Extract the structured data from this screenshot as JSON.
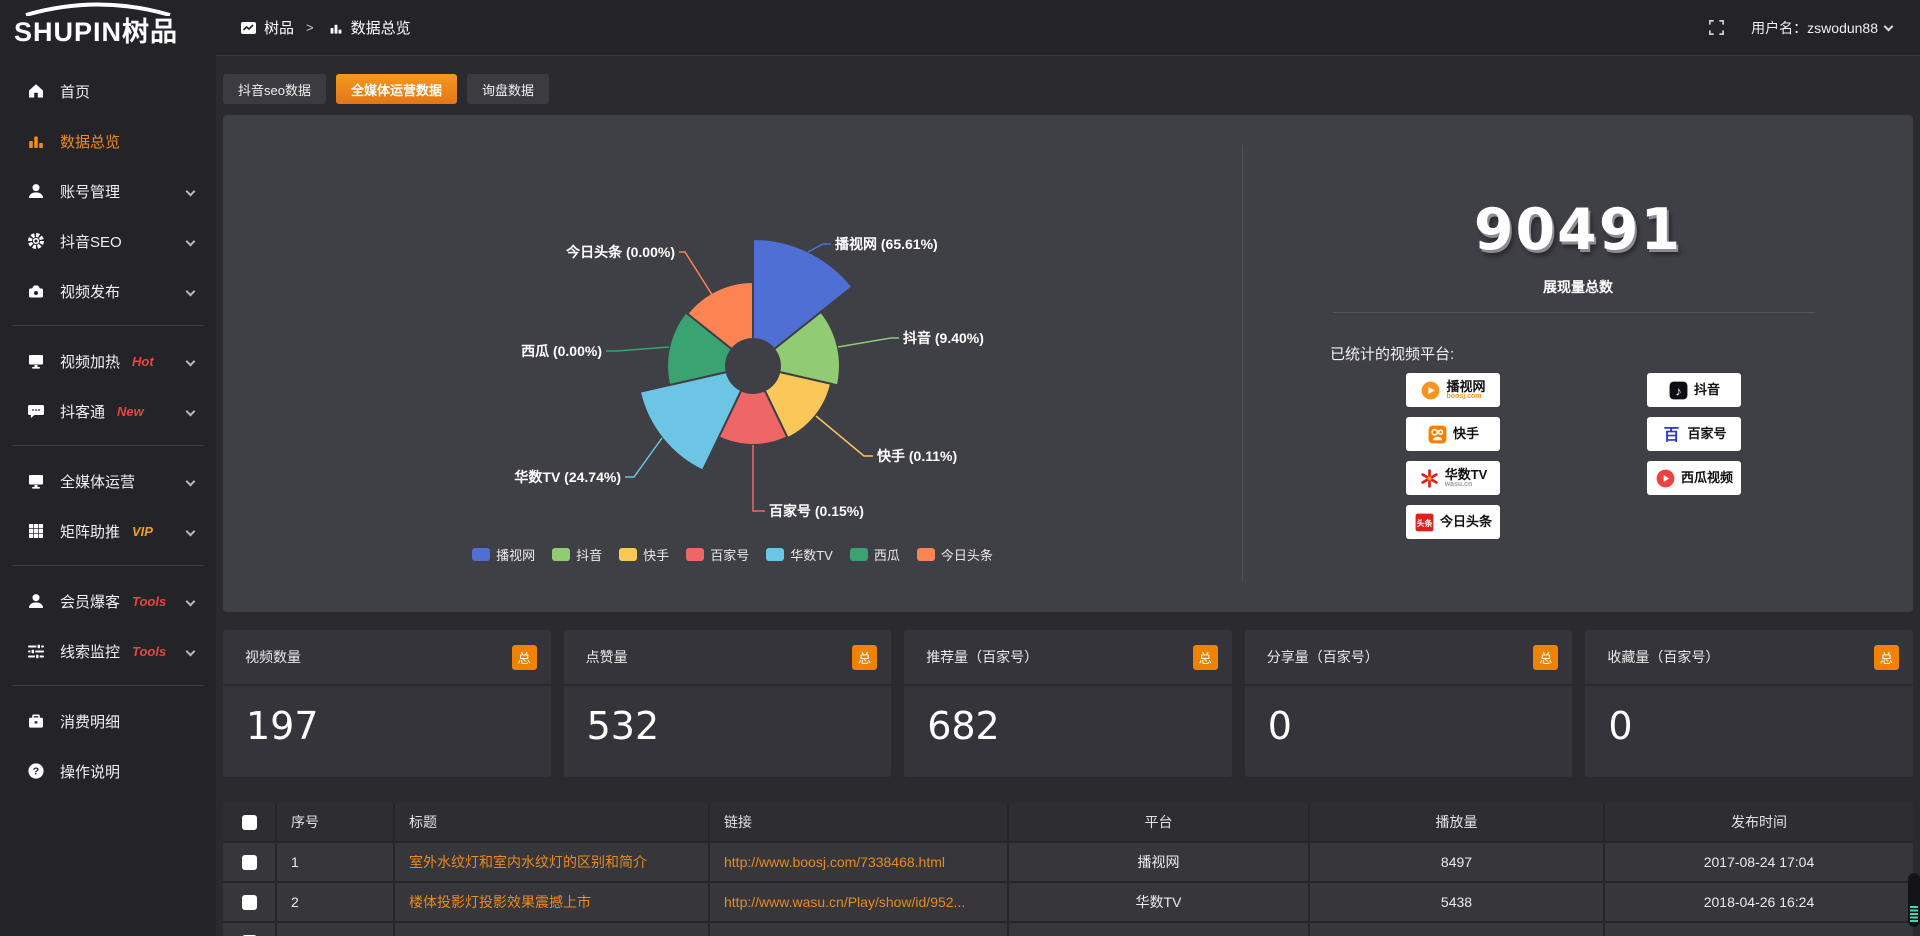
{
  "app": {
    "logo_text": "SHUPIN树品"
  },
  "theme": {
    "accent": "#ee8418",
    "link": "#ea8b1e",
    "hot_badge": "#e84545",
    "vip_badge": "#efa020",
    "badge_total_bg": "#ef8200"
  },
  "header": {
    "breadcrumb_root": "树品",
    "breadcrumb_separator": ">",
    "breadcrumb_current": "数据总览",
    "user_label": "用户名：",
    "username": "zswodun88"
  },
  "sidebar": {
    "items": [
      {
        "label": "首页",
        "icon": "home"
      },
      {
        "label": "数据总览",
        "icon": "bar-chart",
        "active": true
      },
      {
        "label": "账号管理",
        "icon": "user",
        "chevron": true
      },
      {
        "label": "抖音SEO",
        "icon": "gear",
        "chevron": true
      },
      {
        "label": "视频发布",
        "icon": "video-upload",
        "chevron": true,
        "divider_after": true
      },
      {
        "label": "视频加热",
        "icon": "monitor",
        "badge": "Hot",
        "badge_color": "#e84545",
        "chevron": true
      },
      {
        "label": "抖客通",
        "icon": "chat",
        "badge": "New",
        "badge_color": "#e84545",
        "chevron": true,
        "divider_after": true
      },
      {
        "label": "全媒体运营",
        "icon": "monitor",
        "chevron": true
      },
      {
        "label": "矩阵助推",
        "icon": "grid",
        "badge": "VIP",
        "badge_color": "#efa020",
        "chevron": true,
        "divider_after": true
      },
      {
        "label": "会员爆客",
        "icon": "user",
        "badge": "Tools",
        "badge_color": "#e84545",
        "chevron": true
      },
      {
        "label": "线索监控",
        "icon": "sliders",
        "badge": "Tools",
        "badge_color": "#e84545",
        "chevron": true,
        "divider_after": true
      },
      {
        "label": "消费明细",
        "icon": "briefcase"
      },
      {
        "label": "操作说明",
        "icon": "question"
      }
    ]
  },
  "tabs": [
    {
      "label": "抖音seo数据",
      "active": false
    },
    {
      "label": "全媒体运营数据",
      "active": true
    },
    {
      "label": "询盘数据",
      "active": false
    }
  ],
  "chart_data": {
    "type": "pie",
    "subtype": "nightingale-rose",
    "title": "",
    "legend_position": "bottom",
    "equal_angle_slices": true,
    "start_angle_deg": 0,
    "inner_radius_px": 27,
    "series": [
      {
        "name": "播视网",
        "value_pct": 65.61,
        "label": "播视网 (65.61%)",
        "color": "#506fd5",
        "outer_radius_px": 127
      },
      {
        "name": "抖音",
        "value_pct": 9.4,
        "label": "抖音 (9.40%)",
        "color": "#91cc75",
        "outer_radius_px": 87
      },
      {
        "name": "快手",
        "value_pct": 0.11,
        "label": "快手 (0.11%)",
        "color": "#fac858",
        "outer_radius_px": 80
      },
      {
        "name": "百家号",
        "value_pct": 0.15,
        "label": "百家号 (0.15%)",
        "color": "#ee6666",
        "outer_radius_px": 79
      },
      {
        "name": "华数TV",
        "value_pct": 24.74,
        "label": "华数TV (24.74%)",
        "color": "#6cc5e4",
        "outer_radius_px": 116
      },
      {
        "name": "西瓜",
        "value_pct": 0.0,
        "label": "西瓜 (0.00%)",
        "color": "#3ba272",
        "outer_radius_px": 86
      },
      {
        "name": "今日头条",
        "value_pct": 0.0,
        "label": "今日头条 (0.00%)",
        "color": "#fc8452",
        "outer_radius_px": 84
      }
    ]
  },
  "summary": {
    "total_value": "90491",
    "total_label": "展现量总数",
    "platforms_label": "已统计的视频平台:",
    "platform_columns": [
      [
        {
          "name": "播视网",
          "sub": "boosj.com",
          "sub_color": "#f7941d",
          "icon": "boosj"
        },
        {
          "name": "快手",
          "icon": "kuaishou"
        },
        {
          "name": "华数TV",
          "sub": "wasu.cn",
          "sub_color": "#9aa0a6",
          "icon": "wasu"
        },
        {
          "name": "今日头条",
          "icon": "toutiao"
        }
      ],
      [
        {
          "name": "抖音",
          "icon": "douyin"
        },
        {
          "name": "百家号",
          "icon": "baijiahao"
        },
        {
          "name": "西瓜视频",
          "icon": "xigua"
        }
      ]
    ]
  },
  "stat_cards": [
    {
      "title": "视频数量",
      "badge": "总",
      "value": "197"
    },
    {
      "title": "点赞量",
      "badge": "总",
      "value": "532"
    },
    {
      "title": "推荐量（百家号）",
      "badge": "总",
      "value": "682"
    },
    {
      "title": "分享量（百家号）",
      "badge": "总",
      "value": "0"
    },
    {
      "title": "收藏量（百家号）",
      "badge": "总",
      "value": "0"
    }
  ],
  "table": {
    "headers": [
      "序号",
      "标题",
      "链接",
      "平台",
      "播放量",
      "发布时间"
    ],
    "rows": [
      {
        "index": "1",
        "title": "室外水纹灯和室内水纹灯的区别和简介",
        "link": "http://www.boosj.com/7338468.html",
        "platform": "播视网",
        "plays": "8497",
        "time": "2017-08-24 17:04"
      },
      {
        "index": "2",
        "title": "楼体投影灯投影效果震撼上市",
        "link": "http://www.wasu.cn/Play/show/id/952...",
        "platform": "华数TV",
        "plays": "5438",
        "time": "2018-04-26 16:24"
      }
    ]
  }
}
